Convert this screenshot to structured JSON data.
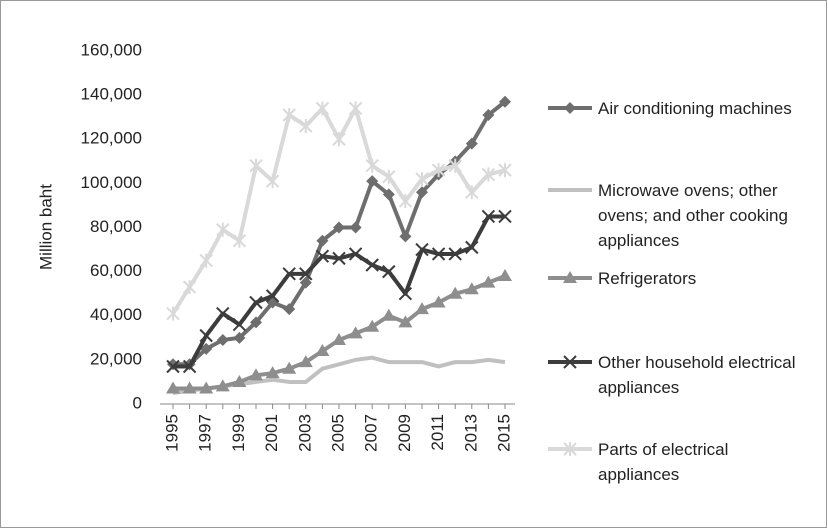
{
  "chart_data": {
    "type": "line",
    "y_label": "Million baht",
    "categories": [
      "1995",
      null,
      "1997",
      null,
      "1999",
      null,
      "2001",
      null,
      "2003",
      null,
      "2005",
      null,
      "2007",
      null,
      "2009",
      null,
      "2011",
      null,
      "2013",
      null,
      "2015"
    ],
    "ylim": [
      0,
      160000
    ],
    "yticks": [
      0,
      {
        "value": 20000,
        "label": "20,000"
      },
      {
        "value": 40000,
        "label": "40,000"
      },
      {
        "value": 60000,
        "label": "60,000"
      },
      {
        "value": 80000,
        "label": "80,000"
      },
      {
        "value": 100000,
        "label": "100,000"
      },
      {
        "value": 120000,
        "label": "120,000"
      },
      {
        "value": 140000,
        "label": "140,000"
      },
      {
        "value": 160000,
        "label": "160,000"
      }
    ],
    "grid": false,
    "series": [
      {
        "name": "Air conditioning machines",
        "color": "#6e6e6e",
        "marker": "diamond",
        "values": [
          18000,
          18000,
          25000,
          29000,
          30000,
          37000,
          46000,
          43000,
          55000,
          74000,
          80000,
          80000,
          101000,
          95000,
          76000,
          96000,
          104000,
          110000,
          118000,
          131000,
          137000
        ]
      },
      {
        "name": "Microwave ovens; other ovens; and other cooking appliances",
        "color": "#c0c0c0",
        "marker": "none",
        "values": [
          5000,
          6000,
          7000,
          8000,
          9000,
          10000,
          11000,
          10000,
          10000,
          16000,
          18000,
          20000,
          21000,
          19000,
          19000,
          19000,
          17000,
          19000,
          19000,
          20000,
          19000
        ]
      },
      {
        "name": "Refrigerators",
        "color": "#8e8e8e",
        "marker": "triangle",
        "values": [
          7000,
          7000,
          7000,
          8000,
          10000,
          13000,
          14000,
          16000,
          19000,
          24000,
          29000,
          32000,
          35000,
          40000,
          37000,
          43000,
          46000,
          50000,
          52000,
          55000,
          58000
        ]
      },
      {
        "name": "Other household electrical appliances",
        "color": "#3c3c3c",
        "marker": "x",
        "values": [
          17000,
          17000,
          31000,
          41000,
          36000,
          46000,
          49000,
          59000,
          59000,
          67000,
          66000,
          68000,
          63000,
          60000,
          50000,
          70000,
          68000,
          68000,
          71000,
          85000,
          85000
        ]
      },
      {
        "name": "Parts of electrical appliances",
        "color": "#d9d9d9",
        "marker": "star",
        "values": [
          41000,
          53000,
          65000,
          79000,
          74000,
          108000,
          101000,
          131000,
          126000,
          134000,
          120000,
          134000,
          108000,
          103000,
          92000,
          102000,
          106000,
          108000,
          96000,
          104000,
          106000
        ]
      }
    ]
  }
}
